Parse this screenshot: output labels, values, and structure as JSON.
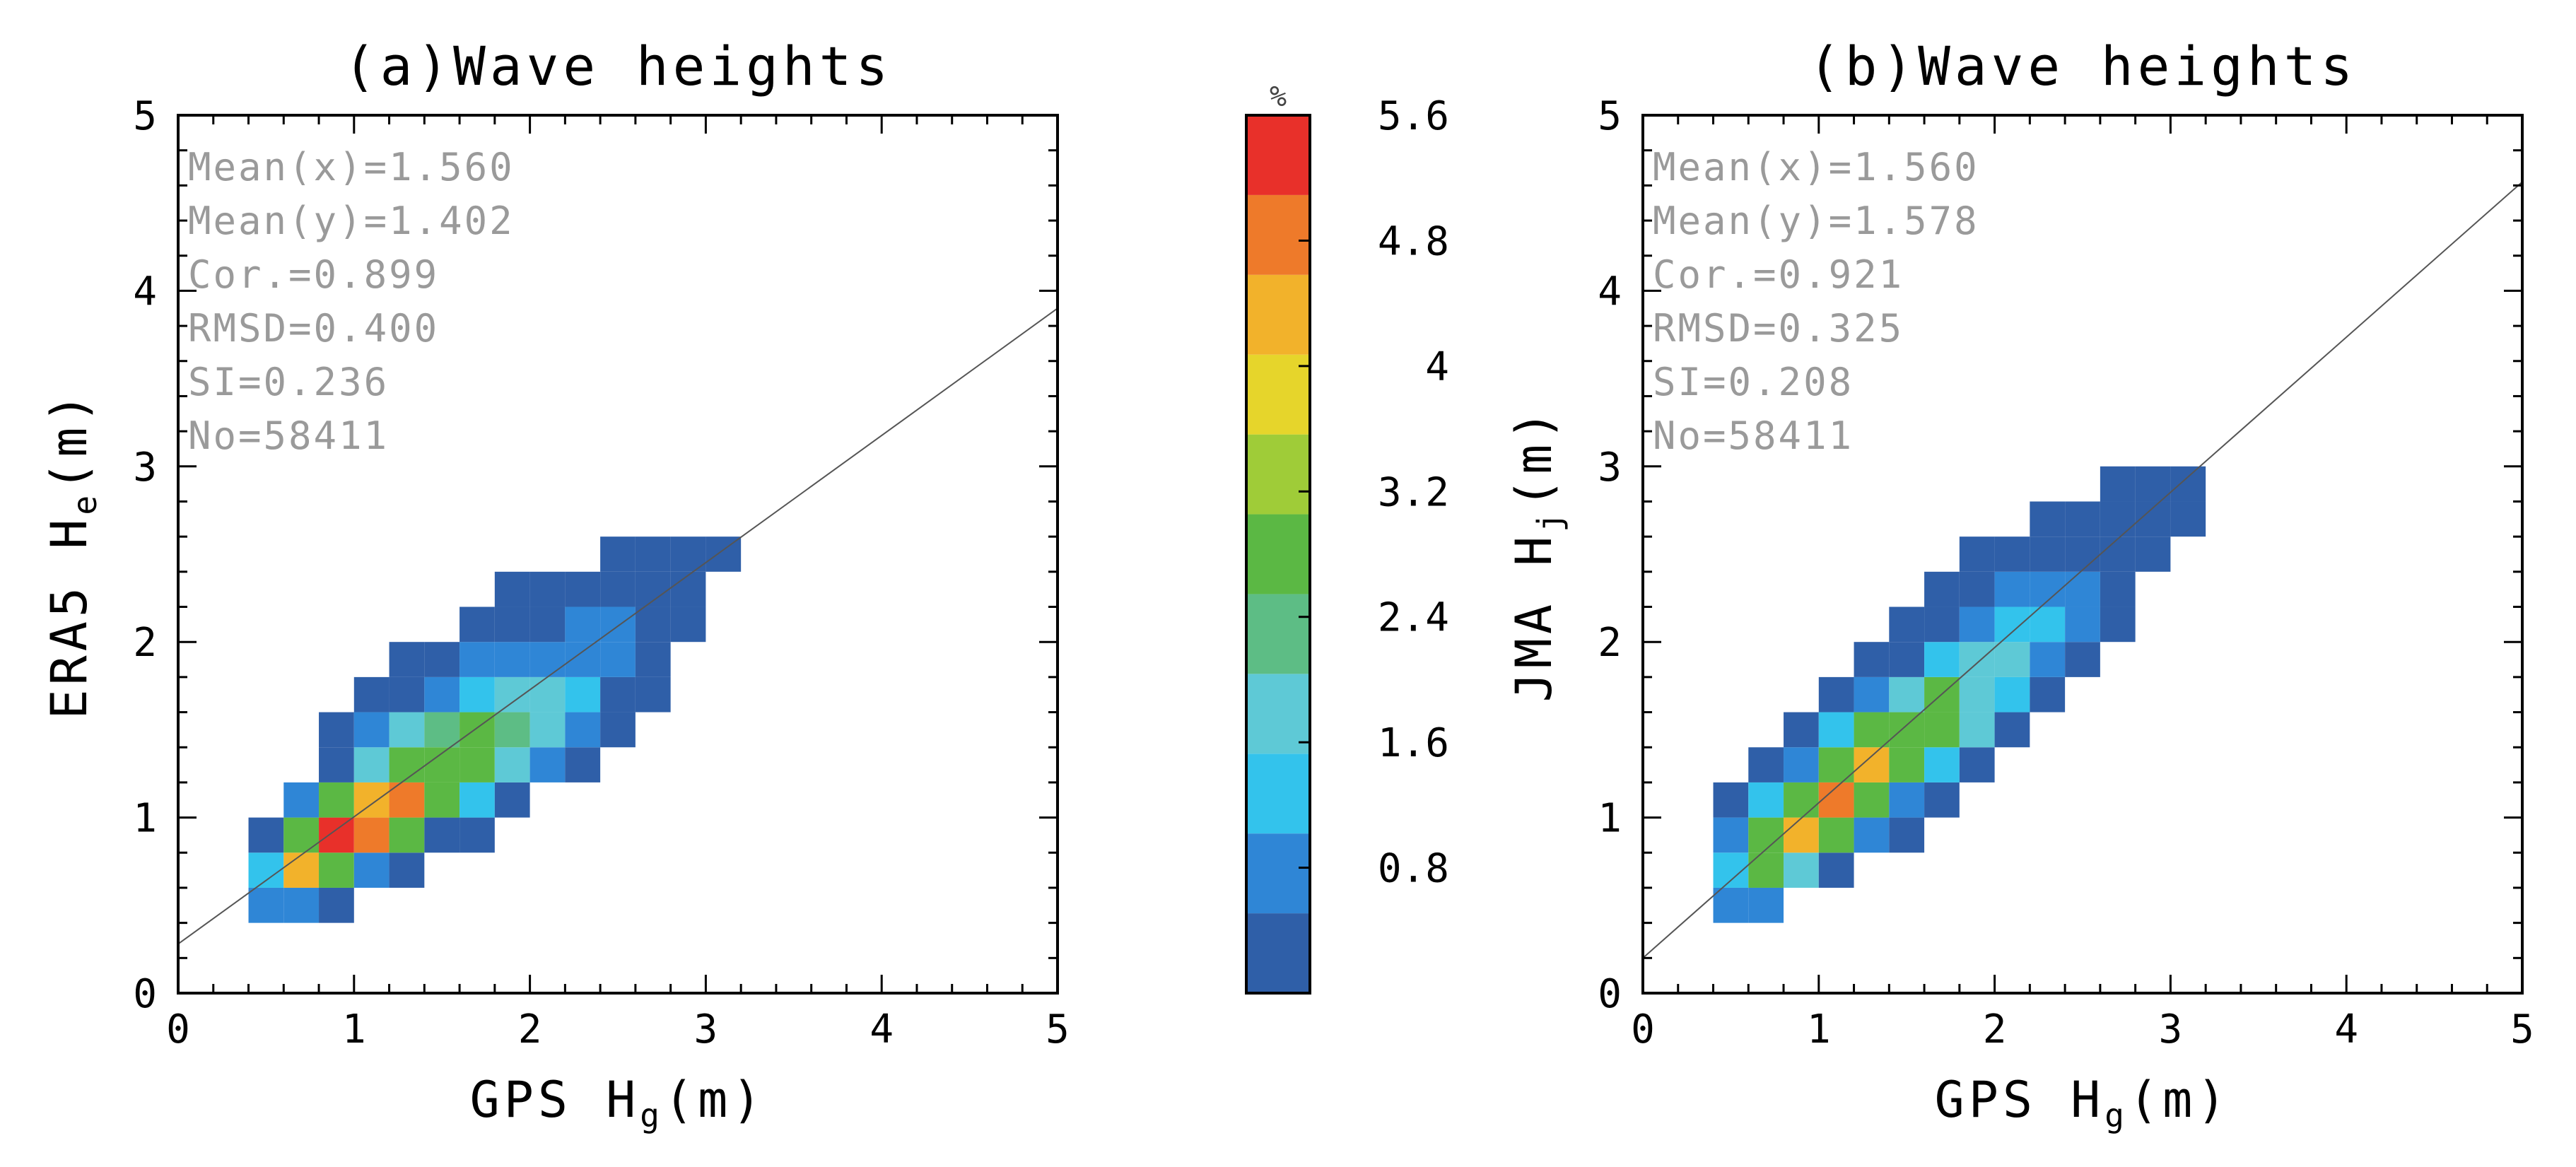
{
  "chart_data": [
    {
      "type": "heatmap",
      "title": "(a)Wave heights",
      "xlabel": "GPS H",
      "xlabel_sub": "g",
      "ylabel": "ERA5 H",
      "ylabel_sub": "e",
      "unit": "(m)",
      "xlim": [
        0,
        5
      ],
      "ylim": [
        0,
        5
      ],
      "xticks": [
        "0",
        "1",
        "2",
        "3",
        "4",
        "5"
      ],
      "yticks": [
        "0",
        "1",
        "2",
        "3",
        "4",
        "5"
      ],
      "bin_size": 0.2,
      "stats": [
        "Mean(x)=1.560",
        "Mean(y)=1.402",
        "Cor.=0.899",
        "RMSD=0.400",
        "SI=0.236",
        "No=58411"
      ],
      "regression_line": [
        [
          0,
          0.28
        ],
        [
          5,
          3.9
        ]
      ],
      "cells": [
        [
          0.4,
          0.4,
          0.8
        ],
        [
          0.6,
          0.4,
          0.7
        ],
        [
          0.8,
          0.4,
          0.3
        ],
        [
          0.4,
          0.6,
          1.3
        ],
        [
          0.6,
          0.6,
          4.2
        ],
        [
          0.8,
          0.6,
          2.8
        ],
        [
          1.0,
          0.6,
          0.9
        ],
        [
          1.2,
          0.6,
          0.3
        ],
        [
          0.4,
          0.8,
          0.3
        ],
        [
          0.6,
          0.8,
          2.8
        ],
        [
          0.8,
          0.8,
          5.5
        ],
        [
          1.0,
          0.8,
          4.7
        ],
        [
          1.2,
          0.8,
          2.8
        ],
        [
          1.4,
          0.8,
          0.5
        ],
        [
          1.6,
          0.8,
          0.3
        ],
        [
          0.6,
          1.0,
          0.7
        ],
        [
          0.8,
          1.0,
          2.7
        ],
        [
          1.0,
          1.0,
          4.2
        ],
        [
          1.2,
          1.0,
          4.6
        ],
        [
          1.4,
          1.0,
          2.8
        ],
        [
          1.6,
          1.0,
          1.4
        ],
        [
          1.8,
          1.0,
          0.3
        ],
        [
          0.8,
          1.2,
          0.5
        ],
        [
          1.0,
          1.2,
          2.0
        ],
        [
          1.2,
          1.2,
          2.9
        ],
        [
          1.4,
          1.2,
          3.0
        ],
        [
          1.6,
          1.2,
          2.6
        ],
        [
          1.8,
          1.2,
          2.0
        ],
        [
          2.0,
          1.2,
          0.8
        ],
        [
          2.2,
          1.2,
          0.3
        ],
        [
          0.8,
          1.4,
          0.3
        ],
        [
          1.0,
          1.4,
          0.6
        ],
        [
          1.2,
          1.4,
          1.6
        ],
        [
          1.4,
          1.4,
          2.4
        ],
        [
          1.6,
          1.4,
          2.6
        ],
        [
          1.8,
          1.4,
          2.5
        ],
        [
          2.0,
          1.4,
          1.6
        ],
        [
          2.2,
          1.4,
          0.6
        ],
        [
          2.4,
          1.4,
          0.3
        ],
        [
          1.0,
          1.6,
          0.3
        ],
        [
          1.2,
          1.6,
          0.4
        ],
        [
          1.4,
          1.6,
          0.8
        ],
        [
          1.6,
          1.6,
          1.3
        ],
        [
          1.8,
          1.6,
          1.8
        ],
        [
          2.0,
          1.6,
          1.7
        ],
        [
          2.2,
          1.6,
          1.2
        ],
        [
          2.4,
          1.6,
          0.5
        ],
        [
          2.6,
          1.6,
          0.2
        ],
        [
          1.2,
          1.8,
          0.3
        ],
        [
          1.4,
          1.8,
          0.4
        ],
        [
          1.6,
          1.8,
          0.7
        ],
        [
          1.8,
          1.8,
          0.9
        ],
        [
          2.0,
          1.8,
          1.0
        ],
        [
          2.2,
          1.8,
          0.9
        ],
        [
          2.4,
          1.8,
          0.7
        ],
        [
          2.6,
          1.8,
          0.3
        ],
        [
          1.6,
          2.0,
          0.3
        ],
        [
          1.8,
          2.0,
          0.4
        ],
        [
          2.0,
          2.0,
          0.5
        ],
        [
          2.2,
          2.0,
          0.6
        ],
        [
          2.4,
          2.0,
          0.6
        ],
        [
          2.6,
          2.0,
          0.3
        ],
        [
          2.8,
          2.0,
          0.2
        ],
        [
          1.8,
          2.2,
          0.2
        ],
        [
          2.0,
          2.2,
          0.2
        ],
        [
          2.2,
          2.2,
          0.3
        ],
        [
          2.4,
          2.2,
          0.3
        ],
        [
          2.6,
          2.2,
          0.3
        ],
        [
          2.8,
          2.2,
          0.2
        ],
        [
          2.4,
          2.4,
          0.2
        ],
        [
          2.6,
          2.4,
          0.2
        ],
        [
          2.8,
          2.4,
          0.2
        ],
        [
          3.0,
          2.4,
          0.2
        ]
      ]
    },
    {
      "type": "heatmap",
      "title": "(b)Wave heights",
      "xlabel": "GPS H",
      "xlabel_sub": "g",
      "ylabel": "JMA H",
      "ylabel_sub": "j",
      "unit": "(m)",
      "xlim": [
        0,
        5
      ],
      "ylim": [
        0,
        5
      ],
      "xticks": [
        "0",
        "1",
        "2",
        "3",
        "4",
        "5"
      ],
      "yticks": [
        "0",
        "1",
        "2",
        "3",
        "4",
        "5"
      ],
      "bin_size": 0.2,
      "stats": [
        "Mean(x)=1.560",
        "Mean(y)=1.578",
        "Cor.=0.921",
        "RMSD=0.325",
        "SI=0.208",
        "No=58411"
      ],
      "regression_line": [
        [
          0,
          0.2
        ],
        [
          5,
          4.62
        ]
      ],
      "cells": [
        [
          0.4,
          0.4,
          0.7
        ],
        [
          0.6,
          0.4,
          0.6
        ],
        [
          0.4,
          0.6,
          1.1
        ],
        [
          0.6,
          0.6,
          2.7
        ],
        [
          0.8,
          0.6,
          1.8
        ],
        [
          1.0,
          0.6,
          0.3
        ],
        [
          0.4,
          0.8,
          0.7
        ],
        [
          0.6,
          0.8,
          2.8
        ],
        [
          0.8,
          0.8,
          4.5
        ],
        [
          1.0,
          0.8,
          2.8
        ],
        [
          1.2,
          0.8,
          0.7
        ],
        [
          1.4,
          0.8,
          0.3
        ],
        [
          0.4,
          1.0,
          0.2
        ],
        [
          0.6,
          1.0,
          1.3
        ],
        [
          0.8,
          1.0,
          2.7
        ],
        [
          1.0,
          1.0,
          5.0
        ],
        [
          1.2,
          1.0,
          2.8
        ],
        [
          1.4,
          1.0,
          0.8
        ],
        [
          1.6,
          1.0,
          0.3
        ],
        [
          0.6,
          1.2,
          0.3
        ],
        [
          0.8,
          1.2,
          0.8
        ],
        [
          1.0,
          1.2,
          2.7
        ],
        [
          1.2,
          1.2,
          4.2
        ],
        [
          1.4,
          1.2,
          2.8
        ],
        [
          1.6,
          1.2,
          1.4
        ],
        [
          1.8,
          1.2,
          0.3
        ],
        [
          0.8,
          1.4,
          0.3
        ],
        [
          1.0,
          1.4,
          1.4
        ],
        [
          1.2,
          1.4,
          2.7
        ],
        [
          1.4,
          1.4,
          2.6
        ],
        [
          1.6,
          1.4,
          2.6
        ],
        [
          1.8,
          1.4,
          1.8
        ],
        [
          2.0,
          1.4,
          0.4
        ],
        [
          1.0,
          1.6,
          0.3
        ],
        [
          1.2,
          1.6,
          0.8
        ],
        [
          1.4,
          1.6,
          1.6
        ],
        [
          1.6,
          1.6,
          2.7
        ],
        [
          1.8,
          1.6,
          2.0
        ],
        [
          2.0,
          1.6,
          1.3
        ],
        [
          2.2,
          1.6,
          0.3
        ],
        [
          1.2,
          1.8,
          0.3
        ],
        [
          1.4,
          1.8,
          0.5
        ],
        [
          1.6,
          1.8,
          1.3
        ],
        [
          1.8,
          1.8,
          1.8
        ],
        [
          2.0,
          1.8,
          1.7
        ],
        [
          2.2,
          1.8,
          0.9
        ],
        [
          2.4,
          1.8,
          0.3
        ],
        [
          1.4,
          2.0,
          0.3
        ],
        [
          1.6,
          2.0,
          0.4
        ],
        [
          1.8,
          2.0,
          0.8
        ],
        [
          2.0,
          2.0,
          1.2
        ],
        [
          2.2,
          2.0,
          1.3
        ],
        [
          2.4,
          2.0,
          0.7
        ],
        [
          2.6,
          2.0,
          0.3
        ],
        [
          1.6,
          2.2,
          0.2
        ],
        [
          1.8,
          2.2,
          0.3
        ],
        [
          2.0,
          2.2,
          0.6
        ],
        [
          2.2,
          2.2,
          0.8
        ],
        [
          2.4,
          2.2,
          0.7
        ],
        [
          2.6,
          2.2,
          0.3
        ],
        [
          1.8,
          2.4,
          0.2
        ],
        [
          2.0,
          2.4,
          0.2
        ],
        [
          2.2,
          2.4,
          0.3
        ],
        [
          2.4,
          2.4,
          0.4
        ],
        [
          2.6,
          2.4,
          0.3
        ],
        [
          2.8,
          2.4,
          0.2
        ],
        [
          2.2,
          2.6,
          0.2
        ],
        [
          2.4,
          2.6,
          0.2
        ],
        [
          2.6,
          2.6,
          0.3
        ],
        [
          2.8,
          2.6,
          0.3
        ],
        [
          3.0,
          2.6,
          0.2
        ],
        [
          2.6,
          2.8,
          0.2
        ],
        [
          2.8,
          2.8,
          0.2
        ],
        [
          3.0,
          2.8,
          0.2
        ]
      ]
    }
  ],
  "colorbar": {
    "unit": "%",
    "min": 0,
    "max": 5.6,
    "ticks": [
      "0.8",
      "1.6",
      "2.4",
      "3.2",
      "4",
      "4.8",
      "5.6"
    ],
    "tick_values": [
      0.8,
      1.6,
      2.4,
      3.2,
      4.0,
      4.8,
      5.6
    ],
    "colors": [
      "#2f5fa8",
      "#2f86d6",
      "#33c3ec",
      "#5ec9d6",
      "#5dbd85",
      "#5bb844",
      "#9fcc38",
      "#e6d52b",
      "#f2b22b",
      "#ee7a2a",
      "#e8302a"
    ]
  }
}
